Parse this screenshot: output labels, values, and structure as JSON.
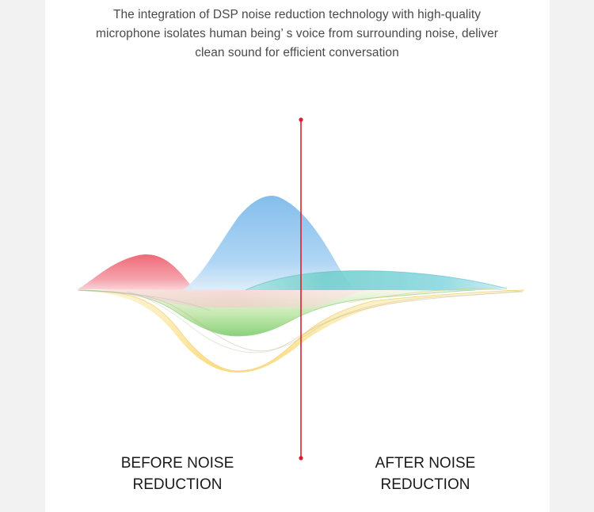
{
  "description": {
    "line1": "The integration of DSP noise reduction technology with high-quality",
    "line2": "microphone isolates human being’ s voice from surrounding noise, deliver",
    "line3": "clean sound for efficient conversation"
  },
  "labels": {
    "before": {
      "line1": "BEFORE NOISE",
      "line2": "REDUCTION"
    },
    "after": {
      "line1": "AFTER NOISE",
      "line2": "REDUCTION"
    }
  },
  "colors": {
    "divider": "#d8202a",
    "red_wave": "#ef6b78",
    "blue_wave": "#7fbcec",
    "teal_wave": "#7ed3cf",
    "green_wave": "#93d68a",
    "yellow_wave": "#fbe08a"
  }
}
